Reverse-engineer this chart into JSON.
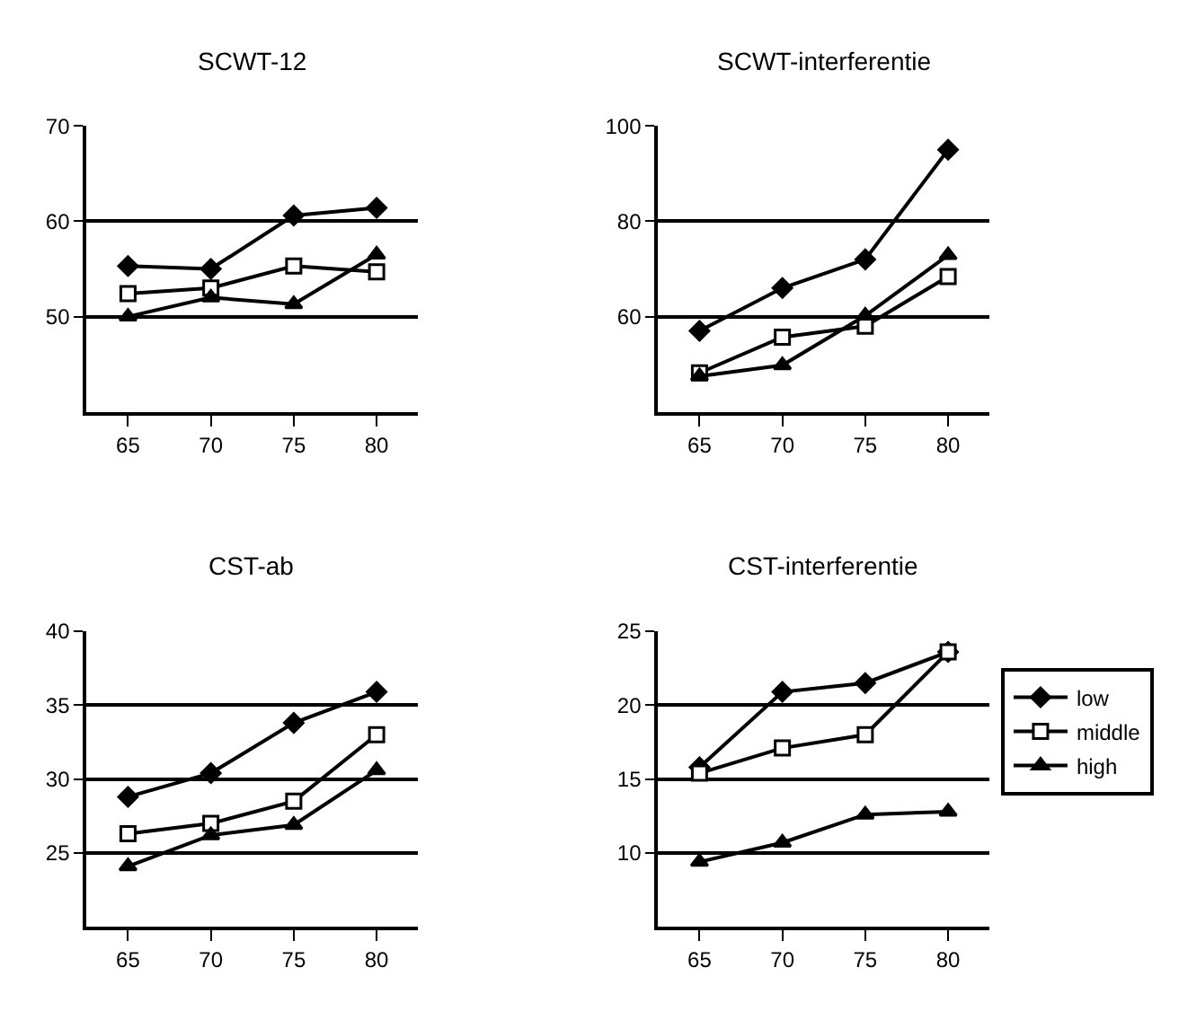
{
  "chart_data": [
    {
      "type": "line",
      "title": "SCWT-12",
      "categories": [
        "65",
        "70",
        "75",
        "80"
      ],
      "ylim": [
        40,
        70
      ],
      "yticks": [
        50,
        60,
        70
      ],
      "grid": "y",
      "legend": false,
      "line_style": "solid",
      "series": [
        {
          "color": "#000000",
          "marker": "diamond",
          "values": [
            55.3,
            55.0,
            60.6,
            61.4
          ]
        },
        {
          "color": "#000000",
          "marker": "square",
          "values": [
            52.4,
            53.0,
            55.3,
            54.7
          ]
        },
        {
          "color": "#000000",
          "marker": "triangle",
          "values": [
            50.0,
            52.0,
            51.3,
            56.5
          ]
        }
      ]
    },
    {
      "type": "line",
      "title": "SCWT-interferentie",
      "categories": [
        "65",
        "70",
        "75",
        "80"
      ],
      "ylim": [
        40,
        100
      ],
      "yticks": [
        60,
        80,
        100
      ],
      "grid": "y",
      "legend": false,
      "line_style": "solid",
      "series": [
        {
          "color": "#000000",
          "marker": "diamond",
          "values": [
            57,
            66,
            72,
            95
          ]
        },
        {
          "color": "#000000",
          "marker": "square",
          "values": [
            48.2,
            55.7,
            58,
            68.4
          ]
        },
        {
          "color": "#000000",
          "marker": "triangle",
          "values": [
            47.5,
            49.8,
            60.2,
            72.9
          ]
        }
      ]
    },
    {
      "type": "line",
      "title": "CST-ab",
      "categories": [
        "65",
        "70",
        "75",
        "80"
      ],
      "ylim": [
        20,
        40
      ],
      "yticks": [
        25,
        30,
        35,
        40
      ],
      "grid": "y",
      "legend": false,
      "line_style": "solid",
      "series": [
        {
          "color": "#000000",
          "marker": "diamond",
          "values": [
            28.8,
            30.4,
            33.8,
            35.9
          ]
        },
        {
          "color": "#000000",
          "marker": "square",
          "values": [
            26.3,
            27.0,
            28.5,
            33.0
          ]
        },
        {
          "color": "#000000",
          "marker": "triangle",
          "values": [
            24.1,
            26.2,
            26.9,
            30.6
          ]
        }
      ]
    },
    {
      "type": "line",
      "title": "CST-interferentie",
      "categories": [
        "65",
        "70",
        "75",
        "80"
      ],
      "ylim": [
        5,
        25
      ],
      "yticks": [
        10,
        15,
        20,
        25
      ],
      "grid": "y",
      "legend": "right",
      "line_style": "solid",
      "series": [
        {
          "name": "low",
          "color": "#000000",
          "marker": "diamond",
          "values": [
            15.8,
            20.9,
            21.5,
            23.6
          ]
        },
        {
          "name": "middle",
          "color": "#000000",
          "marker": "square",
          "values": [
            15.4,
            17.1,
            18.0,
            23.6
          ]
        },
        {
          "name": "high",
          "color": "#000000",
          "marker": "triangle",
          "values": [
            9.4,
            10.7,
            12.6,
            12.8
          ]
        }
      ]
    }
  ]
}
